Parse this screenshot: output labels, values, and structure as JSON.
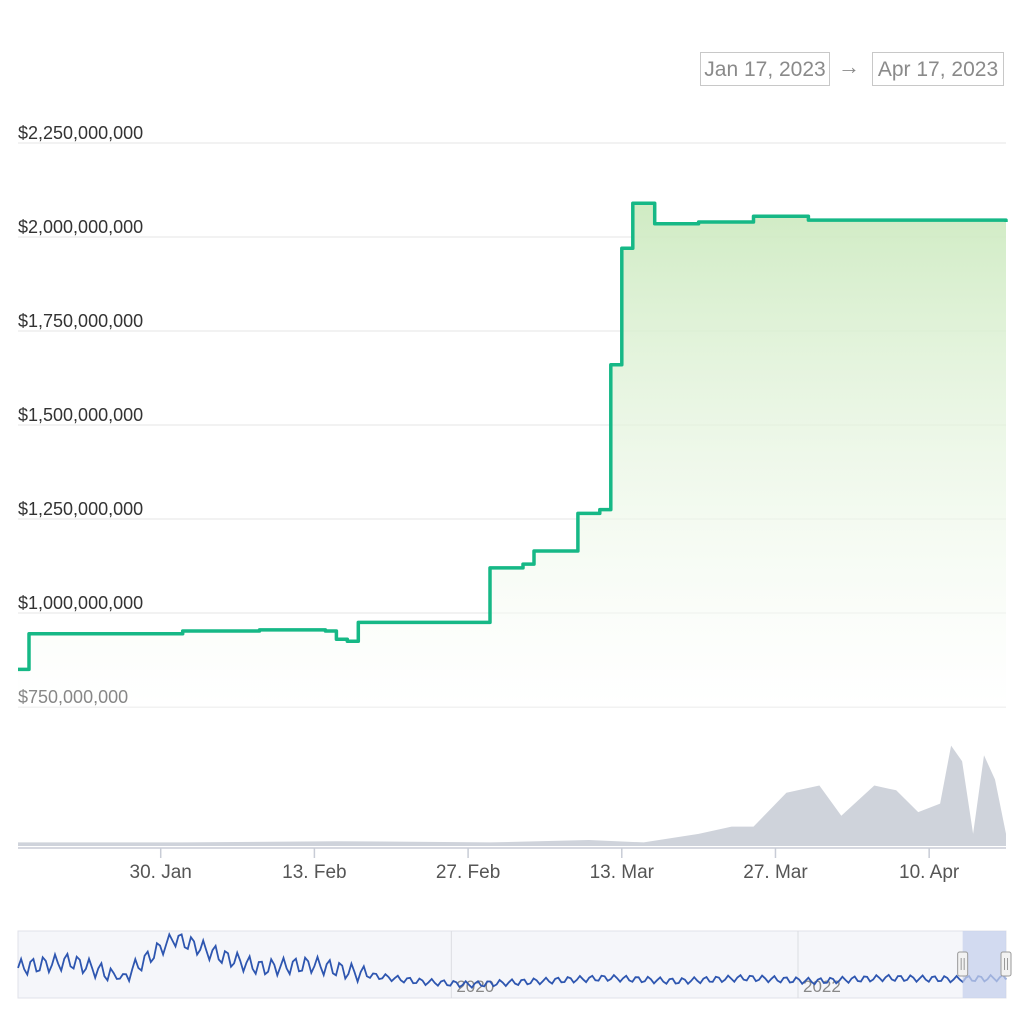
{
  "range_selector": {
    "from": "Jan 17, 2023",
    "arrow": "→",
    "to": "Apr 17, 2023"
  },
  "colors": {
    "line": "#16b886",
    "area_top": "#cdeac0",
    "volume": "#cfd3db",
    "navigator_line": "#2e56b0",
    "navigator_mask": "#c6d0ec",
    "grid": "#e6e6e6"
  },
  "chart_data": [
    {
      "type": "area",
      "title": "",
      "xlabel": "",
      "ylabel": "",
      "x_range": [
        "2023-01-17",
        "2023-04-17"
      ],
      "ylim": [
        750000000,
        2250000000
      ],
      "y_ticks": [
        "$750,000,000",
        "$1,000,000,000",
        "$1,250,000,000",
        "$1,500,000,000",
        "$1,750,000,000",
        "$2,000,000,000",
        "$2,250,000,000"
      ],
      "x_ticks": [
        "30. Jan",
        "13. Feb",
        "27. Feb",
        "13. Mar",
        "27. Mar",
        "10. Apr"
      ],
      "grid": true,
      "series": [
        {
          "x": [
            "2023-01-17",
            "2023-01-18",
            "2023-01-25",
            "2023-02-01",
            "2023-02-08",
            "2023-02-14",
            "2023-02-15",
            "2023-02-16",
            "2023-02-17",
            "2023-02-20",
            "2023-02-25",
            "2023-02-28",
            "2023-03-01",
            "2023-03-04",
            "2023-03-05",
            "2023-03-08",
            "2023-03-09",
            "2023-03-11",
            "2023-03-12",
            "2023-03-12",
            "2023-03-13",
            "2023-03-14",
            "2023-03-16",
            "2023-03-20",
            "2023-03-25",
            "2023-03-30",
            "2023-04-05",
            "2023-04-10",
            "2023-04-17"
          ],
          "values": [
            850000000,
            945000000,
            945000000,
            952000000,
            955000000,
            952000000,
            930000000,
            925000000,
            975000000,
            975000000,
            975000000,
            975000000,
            1120000000,
            1130000000,
            1165000000,
            1165000000,
            1265000000,
            1275000000,
            1305000000,
            1660000000,
            1970000000,
            2090000000,
            2035000000,
            2040000000,
            2055000000,
            2045000000,
            2045000000,
            2045000000,
            2040000000
          ]
        }
      ]
    },
    {
      "type": "area",
      "title": "",
      "xlabel": "",
      "ylabel": "",
      "x_range": [
        "2023-01-17",
        "2023-04-17"
      ],
      "ylim": [
        0,
        100
      ],
      "series": [
        {
          "x": [
            "2023-01-17",
            "2023-02-01",
            "2023-02-15",
            "2023-03-01",
            "2023-03-10",
            "2023-03-15",
            "2023-03-20",
            "2023-03-23",
            "2023-03-25",
            "2023-03-28",
            "2023-03-31",
            "2023-04-02",
            "2023-04-05",
            "2023-04-07",
            "2023-04-09",
            "2023-04-11",
            "2023-04-12",
            "2023-04-13",
            "2023-04-14",
            "2023-04-15",
            "2023-04-16",
            "2023-04-17"
          ],
          "values": [
            3,
            3,
            4,
            3,
            5,
            3,
            10,
            16,
            16,
            44,
            50,
            25,
            50,
            46,
            28,
            35,
            83,
            70,
            10,
            75,
            55,
            10
          ]
        }
      ]
    },
    {
      "type": "line",
      "title": "",
      "xlabel": "",
      "ylabel": "",
      "x_ticks": [
        "2020",
        "2022"
      ],
      "series": [
        {
          "x": [
            2017.6,
            2017.9,
            2018.2,
            2018.5,
            2018.8,
            2019.0,
            2019.3,
            2019.6,
            2019.9,
            2020.2,
            2020.6,
            2021.0,
            2021.4,
            2021.8,
            2022.2,
            2022.6,
            2023.0,
            2023.3
          ],
          "values": [
            0.45,
            0.55,
            0.3,
            0.9,
            0.6,
            0.45,
            0.5,
            0.35,
            0.25,
            0.2,
            0.25,
            0.3,
            0.25,
            0.3,
            0.25,
            0.3,
            0.28,
            0.3
          ]
        }
      ],
      "selected_range": [
        "2023-01-17",
        "2023-04-17"
      ]
    }
  ]
}
